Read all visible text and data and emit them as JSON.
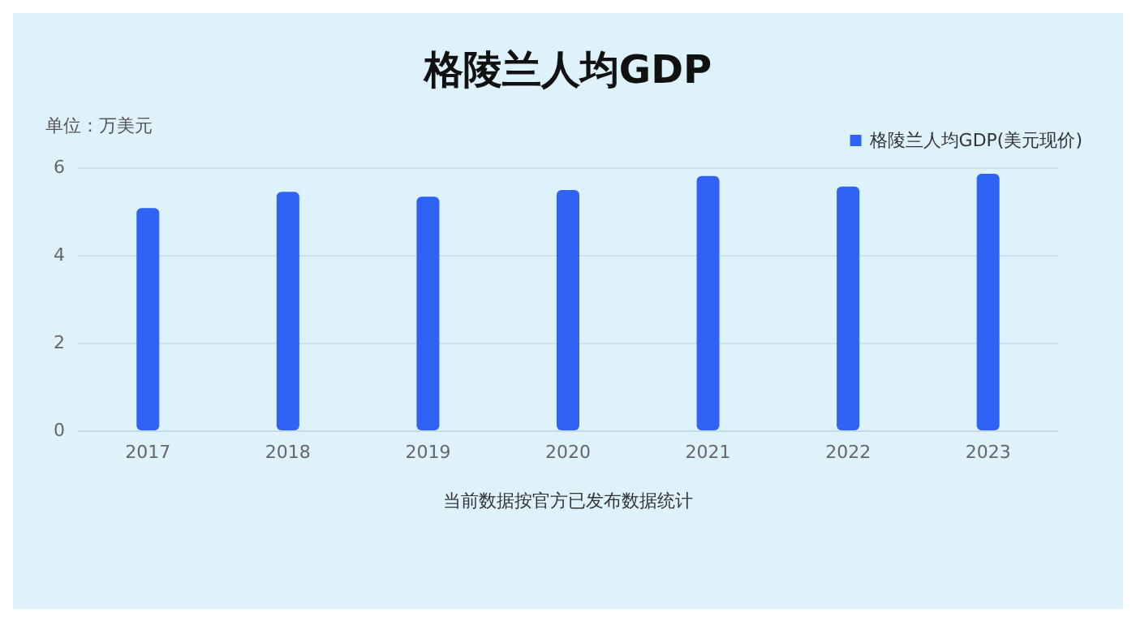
{
  "chart_data": {
    "type": "bar",
    "title": "格陵兰人均GDP",
    "ylabel": "单位：万美元",
    "categories": [
      "2017",
      "2018",
      "2019",
      "2020",
      "2021",
      "2022",
      "2023"
    ],
    "series": [
      {
        "name": "格陵兰人均GDP(美元现价)",
        "color": "#2f62f5",
        "values": [
          5.07,
          5.44,
          5.33,
          5.48,
          5.8,
          5.56,
          5.85
        ]
      }
    ],
    "ylim": [
      0,
      6
    ],
    "yticks": [
      0,
      2,
      4,
      6
    ],
    "grid": "y",
    "legend": "top right",
    "annotations": [
      "当前数据按官方已发布数据统计"
    ]
  }
}
